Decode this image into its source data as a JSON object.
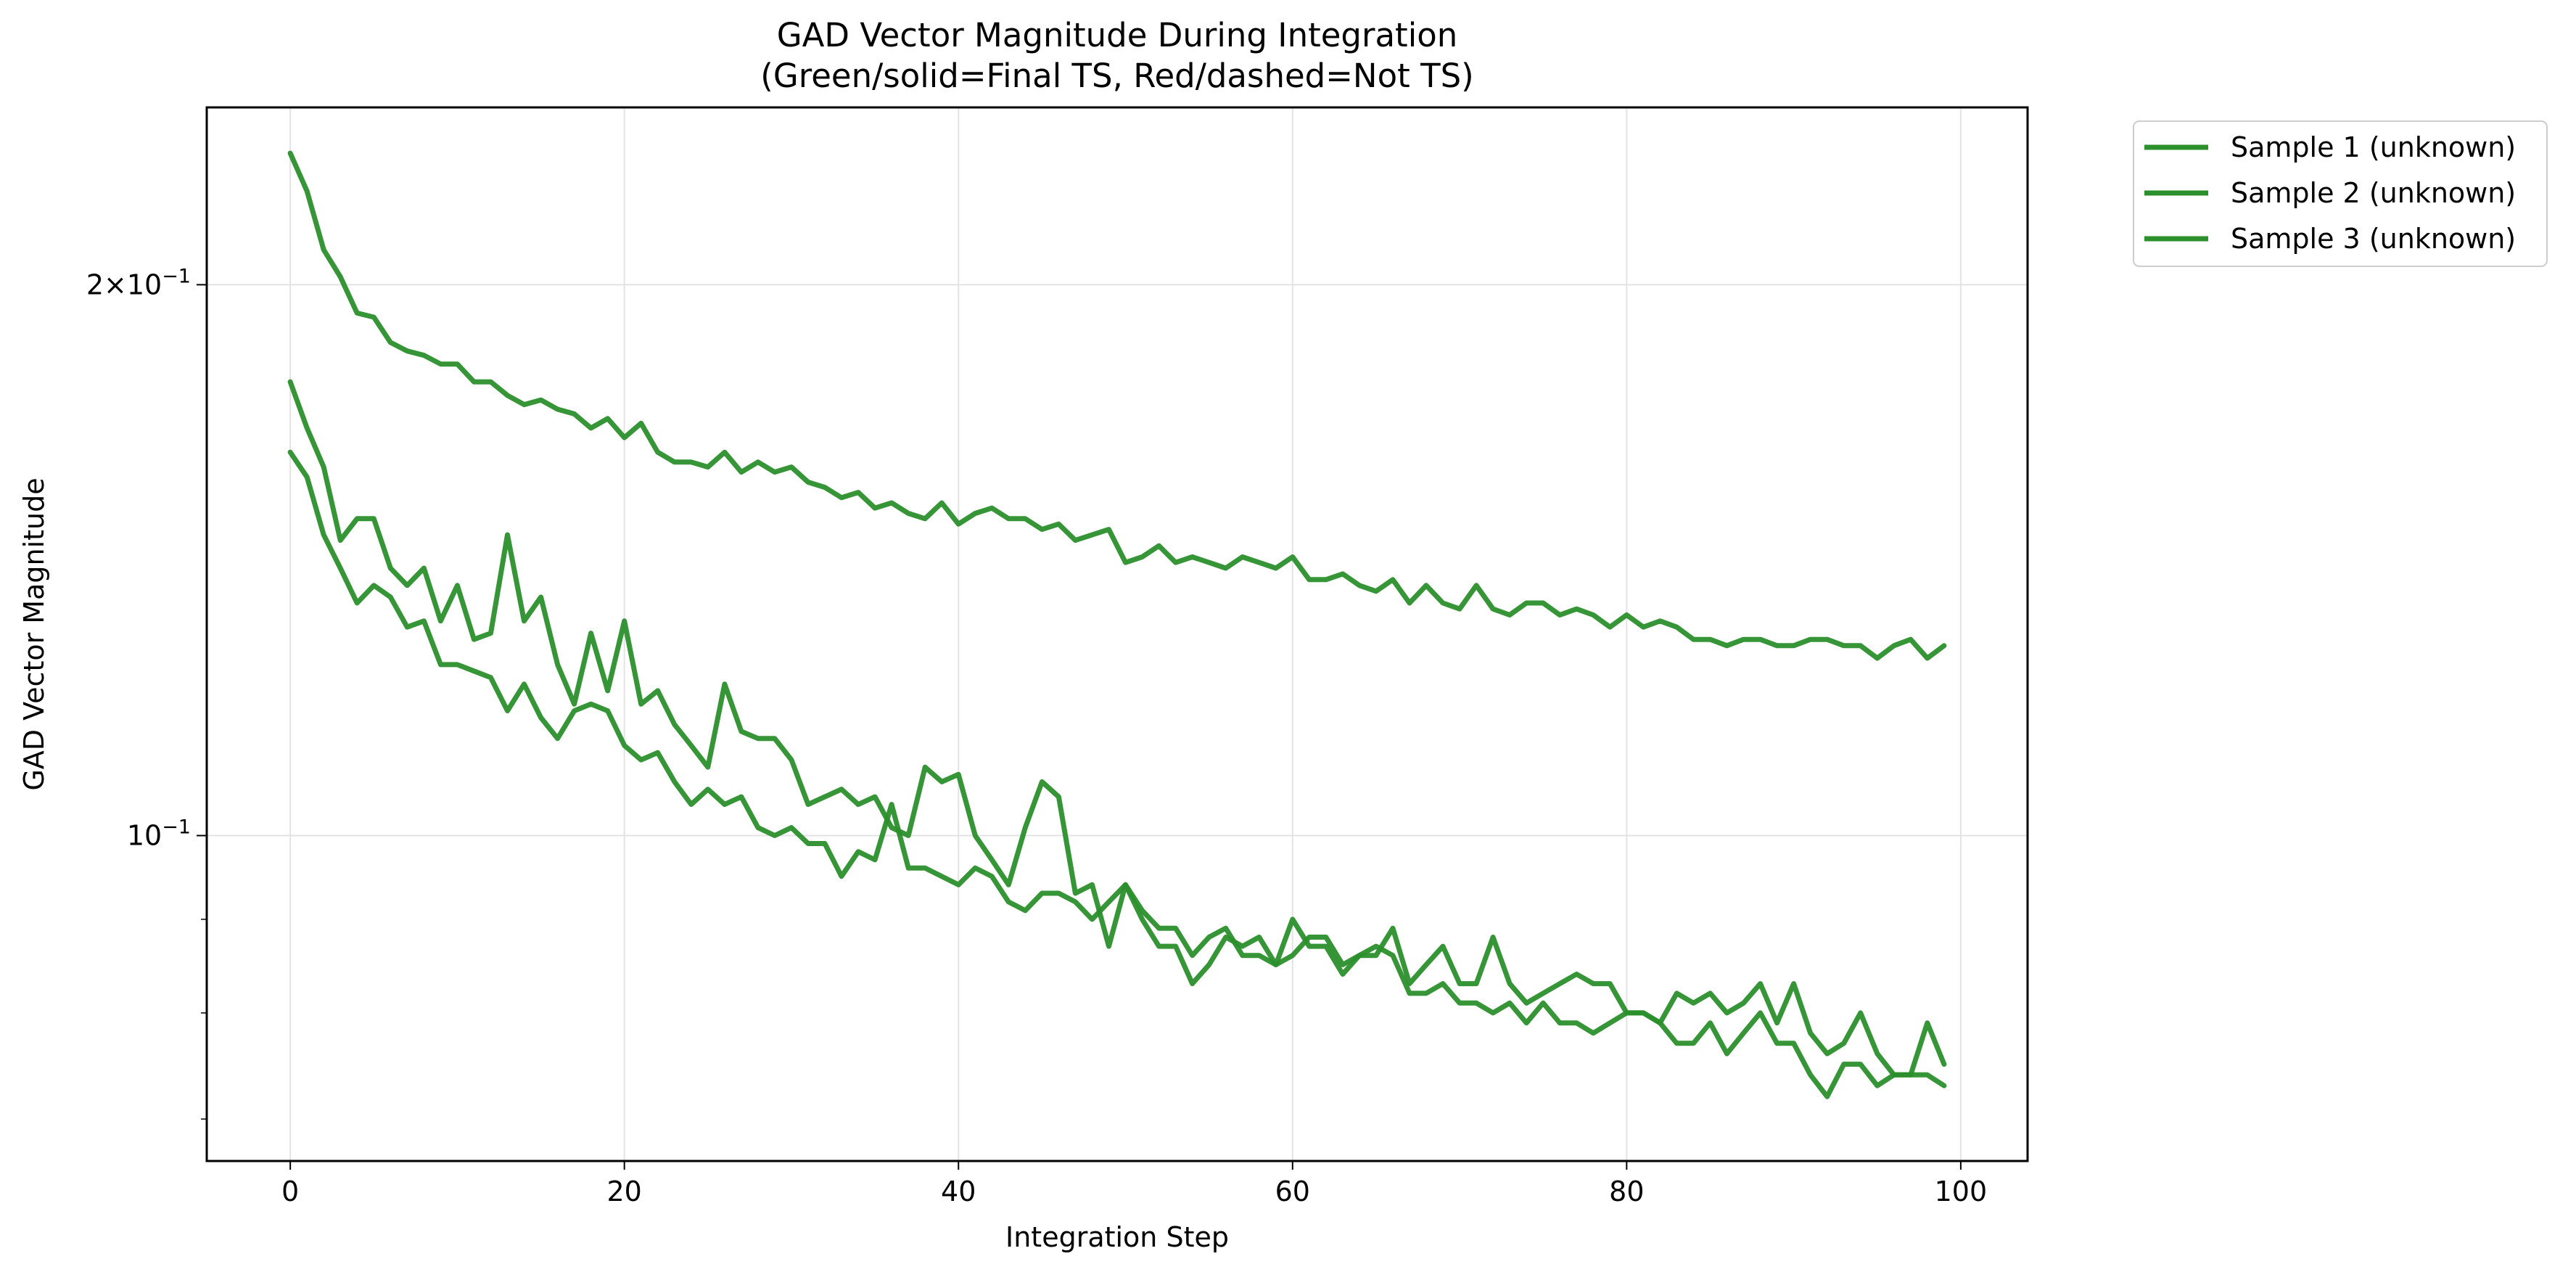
{
  "chart_data": {
    "type": "line",
    "title": "GAD Vector Magnitude During Integration",
    "subtitle": "(Green/solid=Final TS, Red/dashed=Not TS)",
    "xlabel": "Integration Step",
    "ylabel": "GAD Vector Magnitude",
    "xlim": [
      -5,
      104
    ],
    "ylim": [
      0.0664,
      0.25
    ],
    "y_scale": "log",
    "grid": true,
    "legend_position": "outside-top-right",
    "line_color": "#2b8f2b",
    "x_ticks": [
      {
        "value": 0,
        "label": "0"
      },
      {
        "value": 20,
        "label": "20"
      },
      {
        "value": 40,
        "label": "40"
      },
      {
        "value": 60,
        "label": "60"
      },
      {
        "value": 80,
        "label": "80"
      },
      {
        "value": 100,
        "label": "100"
      }
    ],
    "y_major_ticks": [
      {
        "value": 0.2,
        "base": "2×10",
        "exp": "−1"
      },
      {
        "value": 0.1,
        "base": "10",
        "exp": "−1"
      }
    ],
    "y_minor_ticks": [
      0.07,
      0.08,
      0.09
    ],
    "x": [
      0,
      1,
      2,
      3,
      4,
      5,
      6,
      7,
      8,
      9,
      10,
      11,
      12,
      13,
      14,
      15,
      16,
      17,
      18,
      19,
      20,
      21,
      22,
      23,
      24,
      25,
      26,
      27,
      28,
      29,
      30,
      31,
      32,
      33,
      34,
      35,
      36,
      37,
      38,
      39,
      40,
      41,
      42,
      43,
      44,
      45,
      46,
      47,
      48,
      49,
      50,
      51,
      52,
      53,
      54,
      55,
      56,
      57,
      58,
      59,
      60,
      61,
      62,
      63,
      64,
      65,
      66,
      67,
      68,
      69,
      70,
      71,
      72,
      73,
      74,
      75,
      76,
      77,
      78,
      79,
      80,
      81,
      82,
      83,
      84,
      85,
      86,
      87,
      88,
      89,
      90,
      91,
      92,
      93,
      94,
      95,
      96,
      97,
      98,
      99
    ],
    "series": [
      {
        "name": "Sample 1 (unknown)",
        "values": [
          0.236,
          0.225,
          0.209,
          0.202,
          0.193,
          0.192,
          0.186,
          0.184,
          0.183,
          0.181,
          0.181,
          0.177,
          0.177,
          0.174,
          0.172,
          0.173,
          0.171,
          0.17,
          0.167,
          0.169,
          0.165,
          0.168,
          0.162,
          0.16,
          0.16,
          0.159,
          0.162,
          0.158,
          0.16,
          0.158,
          0.159,
          0.156,
          0.155,
          0.153,
          0.154,
          0.151,
          0.152,
          0.15,
          0.149,
          0.152,
          0.148,
          0.15,
          0.151,
          0.149,
          0.149,
          0.147,
          0.148,
          0.145,
          0.146,
          0.147,
          0.141,
          0.142,
          0.144,
          0.141,
          0.142,
          0.141,
          0.14,
          0.142,
          0.141,
          0.14,
          0.142,
          0.138,
          0.138,
          0.139,
          0.137,
          0.136,
          0.138,
          0.134,
          0.137,
          0.134,
          0.133,
          0.137,
          0.133,
          0.132,
          0.134,
          0.134,
          0.132,
          0.133,
          0.132,
          0.13,
          0.132,
          0.13,
          0.131,
          0.13,
          0.128,
          0.128,
          0.127,
          0.128,
          0.128,
          0.127,
          0.127,
          0.128,
          0.128,
          0.127,
          0.127,
          0.125,
          0.127,
          0.128,
          0.125,
          0.127
        ]
      },
      {
        "name": "Sample 2 (unknown)",
        "values": [
          0.177,
          0.167,
          0.159,
          0.145,
          0.149,
          0.149,
          0.14,
          0.137,
          0.14,
          0.131,
          0.137,
          0.128,
          0.129,
          0.146,
          0.131,
          0.135,
          0.124,
          0.118,
          0.129,
          0.12,
          0.131,
          0.118,
          0.12,
          0.115,
          0.112,
          0.109,
          0.121,
          0.114,
          0.113,
          0.113,
          0.11,
          0.104,
          0.105,
          0.106,
          0.104,
          0.105,
          0.101,
          0.1,
          0.109,
          0.107,
          0.108,
          0.1,
          0.097,
          0.094,
          0.101,
          0.107,
          0.105,
          0.093,
          0.094,
          0.087,
          0.094,
          0.09,
          0.087,
          0.087,
          0.083,
          0.085,
          0.088,
          0.087,
          0.088,
          0.085,
          0.09,
          0.087,
          0.087,
          0.084,
          0.086,
          0.086,
          0.089,
          0.083,
          0.085,
          0.087,
          0.083,
          0.083,
          0.088,
          0.083,
          0.081,
          0.082,
          0.083,
          0.084,
          0.083,
          0.083,
          0.08,
          0.08,
          0.079,
          0.082,
          0.081,
          0.082,
          0.08,
          0.081,
          0.083,
          0.079,
          0.083,
          0.078,
          0.076,
          0.077,
          0.08,
          0.076,
          0.074,
          0.074,
          0.079,
          0.075
        ]
      },
      {
        "name": "Sample 3 (unknown)",
        "values": [
          0.162,
          0.157,
          0.146,
          0.14,
          0.134,
          0.137,
          0.135,
          0.13,
          0.131,
          0.124,
          0.124,
          0.123,
          0.122,
          0.117,
          0.121,
          0.116,
          0.113,
          0.117,
          0.118,
          0.117,
          0.112,
          0.11,
          0.111,
          0.107,
          0.104,
          0.106,
          0.104,
          0.105,
          0.101,
          0.1,
          0.101,
          0.099,
          0.099,
          0.095,
          0.098,
          0.097,
          0.104,
          0.096,
          0.096,
          0.095,
          0.094,
          0.096,
          0.095,
          0.092,
          0.091,
          0.093,
          0.093,
          0.092,
          0.09,
          0.092,
          0.094,
          0.091,
          0.089,
          0.089,
          0.086,
          0.088,
          0.089,
          0.086,
          0.086,
          0.085,
          0.086,
          0.088,
          0.088,
          0.085,
          0.086,
          0.087,
          0.086,
          0.082,
          0.082,
          0.083,
          0.081,
          0.081,
          0.08,
          0.081,
          0.079,
          0.081,
          0.079,
          0.079,
          0.078,
          0.079,
          0.08,
          0.08,
          0.079,
          0.077,
          0.077,
          0.079,
          0.076,
          0.078,
          0.08,
          0.077,
          0.077,
          0.074,
          0.072,
          0.075,
          0.075,
          0.073,
          0.074,
          0.074,
          0.074,
          0.073
        ]
      }
    ]
  }
}
